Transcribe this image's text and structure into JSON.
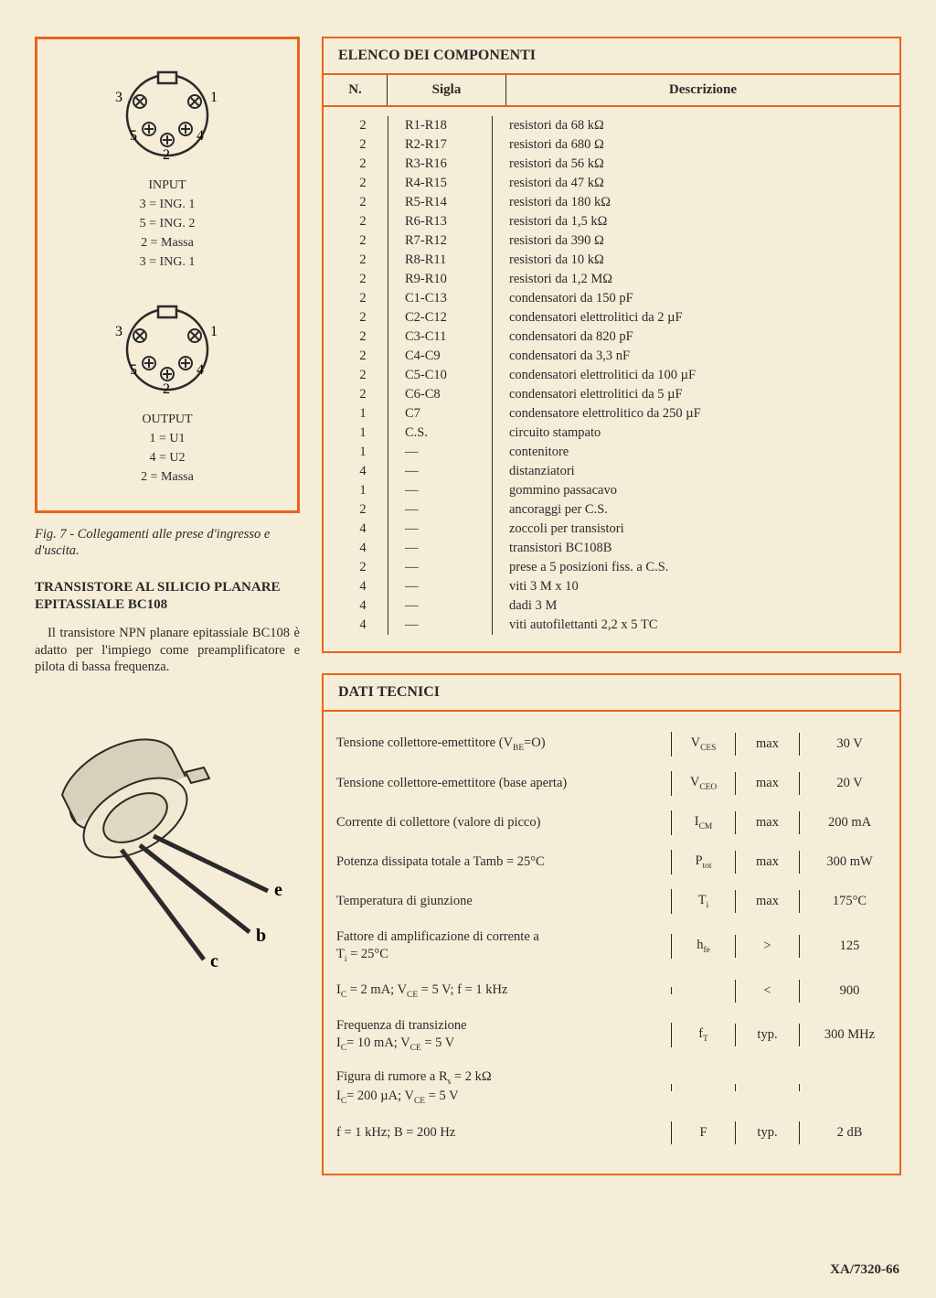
{
  "colors": {
    "accent": "#e8641a",
    "page_bg": "#f5edd8",
    "text": "#2a2a2a"
  },
  "left": {
    "input": {
      "header": "INPUT",
      "pins": [
        "3 = ING. 1",
        "5 = ING. 2",
        "2 = Massa",
        "3 = ING. 1"
      ],
      "labels": {
        "p1": "1",
        "p2": "2",
        "p3": "3",
        "p4": "4",
        "p5": "5"
      }
    },
    "output": {
      "header": "OUTPUT",
      "pins": [
        "1 = U1",
        "4 = U2",
        "2 = Massa"
      ],
      "labels": {
        "p1": "1",
        "p2": "2",
        "p3": "3",
        "p4": "4",
        "p5": "5"
      }
    },
    "fig_caption": "Fig. 7 - Collegamenti alle prese d'ingresso e d'uscita.",
    "section_h": "TRANSISTORE AL SILICIO PLANARE EPITASSIALE BC108",
    "body": "Il transistore NPN planare epitassiale BC108 è adatto per l'impiego come preamplificatore e pilota di bassa frequenza.",
    "trans_labels": {
      "e": "e",
      "b": "b",
      "c": "c"
    }
  },
  "components": {
    "title": "ELENCO DEI COMPONENTI",
    "head": {
      "n": "N.",
      "sigla": "Sigla",
      "descr": "Descrizione"
    },
    "rows": [
      {
        "n": "2",
        "s": "R1-R18",
        "d": "resistori da  68  kΩ"
      },
      {
        "n": "2",
        "s": "R2-R17",
        "d": "resistori da 680   Ω"
      },
      {
        "n": "2",
        "s": "R3-R16",
        "d": "resistori da  56  kΩ"
      },
      {
        "n": "2",
        "s": "R4-R15",
        "d": "resistori da  47  kΩ"
      },
      {
        "n": "2",
        "s": "R5-R14",
        "d": "resistori da 180  kΩ"
      },
      {
        "n": "2",
        "s": "R6-R13",
        "d": "resistori da 1,5  kΩ"
      },
      {
        "n": "2",
        "s": "R7-R12",
        "d": "resistori da 390   Ω"
      },
      {
        "n": "2",
        "s": "R8-R11",
        "d": "resistori da  10  kΩ"
      },
      {
        "n": "2",
        "s": "R9-R10",
        "d": "resistori da 1,2 MΩ"
      },
      {
        "n": "2",
        "s": "C1-C13",
        "d": "condensatori da 150 pF"
      },
      {
        "n": "2",
        "s": "C2-C12",
        "d": "condensatori elettrolitici da 2 µF"
      },
      {
        "n": "2",
        "s": "C3-C11",
        "d": "condensatori da 820 pF"
      },
      {
        "n": "2",
        "s": "C4-C9",
        "d": "condensatori da 3,3 nF"
      },
      {
        "n": "2",
        "s": "C5-C10",
        "d": "condensatori elettrolitici da 100 µF"
      },
      {
        "n": "2",
        "s": "C6-C8",
        "d": "condensatori elettrolitici da 5 µF"
      },
      {
        "n": "1",
        "s": "C7",
        "d": "condensatore elettrolitico da 250 µF"
      },
      {
        "n": "1",
        "s": "C.S.",
        "d": "circuito stampato"
      },
      {
        "n": "1",
        "s": "—",
        "d": "contenitore"
      },
      {
        "n": "4",
        "s": "—",
        "d": "distanziatori"
      },
      {
        "n": "1",
        "s": "—",
        "d": "gommino passacavo"
      },
      {
        "n": "2",
        "s": "—",
        "d": "ancoraggi per C.S."
      },
      {
        "n": "4",
        "s": "—",
        "d": "zoccoli per transistori"
      },
      {
        "n": "4",
        "s": "—",
        "d": "transistori BC108B"
      },
      {
        "n": "2",
        "s": "—",
        "d": "prese a 5 posizioni fiss. a C.S."
      },
      {
        "n": "4",
        "s": "—",
        "d": "viti 3 M x 10"
      },
      {
        "n": "4",
        "s": "—",
        "d": "dadi 3 M"
      },
      {
        "n": "4",
        "s": "—",
        "d": "viti autofilettanti 2,2 x 5 TC"
      }
    ]
  },
  "tech": {
    "title": "DATI TECNICI",
    "rows": [
      {
        "d": "Tensione collettore-emettitore (V<sub>BE</sub>=O)",
        "sym": "V<sub>CES</sub>",
        "rel": "max",
        "val": "30 V"
      },
      {
        "d": "Tensione collettore-emettitore (base aperta)",
        "sym": "V<sub>CEO</sub>",
        "rel": "max",
        "val": "20 V"
      },
      {
        "d": "Corrente di collettore (valore di picco)",
        "sym": "I<sub>CM</sub>",
        "rel": "max",
        "val": "200 mA"
      },
      {
        "d": "Potenza dissipata totale a Tamb = 25°C",
        "sym": "P<sub>tot</sub>",
        "rel": "max",
        "val": "300 mW"
      },
      {
        "d": "Temperatura di giunzione",
        "sym": "T<sub>i</sub>",
        "rel": "max",
        "val": "175°C"
      },
      {
        "d": "Fattore di amplificazione di corrente a<br>T<sub>i</sub> = 25°C",
        "sym": "h<sub>fe</sub>",
        "rel": ">",
        "val": "125"
      },
      {
        "d": "I<sub>C</sub> = 2 mA; V<sub>CE</sub> = 5 V; f = 1 kHz",
        "sym": "",
        "rel": "<",
        "val": "900"
      },
      {
        "d": "Frequenza di transizione<br>I<sub>C</sub>= 10 mA; V<sub>CE</sub> = 5 V",
        "sym": "f<sub>T</sub>",
        "rel": "typ.",
        "val": "300 MHz"
      },
      {
        "d": "Figura di rumore a R<sub>s</sub> = 2 kΩ<br>I<sub>C</sub>= 200 µA; V<sub>CE</sub> = 5 V",
        "sym": "",
        "rel": "",
        "val": ""
      },
      {
        "d": "f = 1 kHz; B = 200 Hz",
        "sym": "F",
        "rel": "typ.",
        "val": "2 dB"
      }
    ]
  },
  "footer": "XA/7320-66"
}
